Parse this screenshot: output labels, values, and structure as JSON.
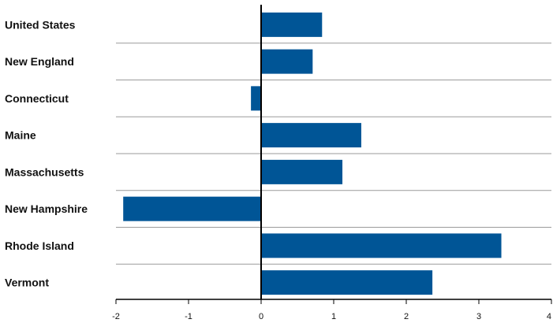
{
  "chart_data": {
    "type": "bar",
    "orientation": "horizontal",
    "categories": [
      "United States",
      "New England",
      "Connecticut",
      "Maine",
      "Massachusetts",
      "New Hampshire",
      "Rhode Island",
      "Vermont"
    ],
    "values": [
      0.84,
      0.71,
      -0.14,
      1.38,
      1.12,
      -1.9,
      3.31,
      2.36
    ],
    "xlim": [
      -2,
      4
    ],
    "xticks": [
      -2,
      -1,
      0,
      1,
      2,
      3,
      4
    ],
    "grid": "horizontal separators between categories",
    "bar_color": "#005596",
    "separator_color": "#9a9a9a",
    "axis_color": "#000000",
    "legend": "none",
    "title": "",
    "xlabel": "",
    "ylabel": ""
  }
}
